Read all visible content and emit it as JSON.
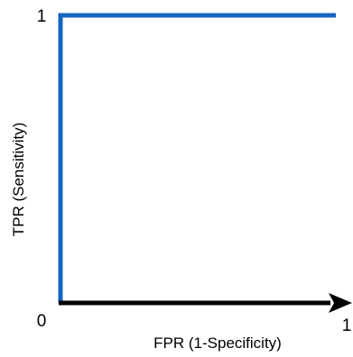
{
  "chart_data": {
    "type": "line",
    "title": "",
    "xlabel": "FPR (1-Specificity)",
    "ylabel": "TPR (Sensitivity)",
    "xlim": [
      0,
      1
    ],
    "ylim": [
      0,
      1
    ],
    "x_ticks": [
      {
        "value": 0,
        "label": "0"
      },
      {
        "value": 1,
        "label": "1"
      }
    ],
    "y_ticks": [
      {
        "value": 1,
        "label": "1"
      }
    ],
    "grid": false,
    "legend": "none",
    "series": [
      {
        "color": "#1565c0",
        "points": [
          {
            "x": 0,
            "y": 0
          },
          {
            "x": 0,
            "y": 1
          },
          {
            "x": 1,
            "y": 1
          }
        ]
      }
    ],
    "axis_color": "#000000"
  }
}
